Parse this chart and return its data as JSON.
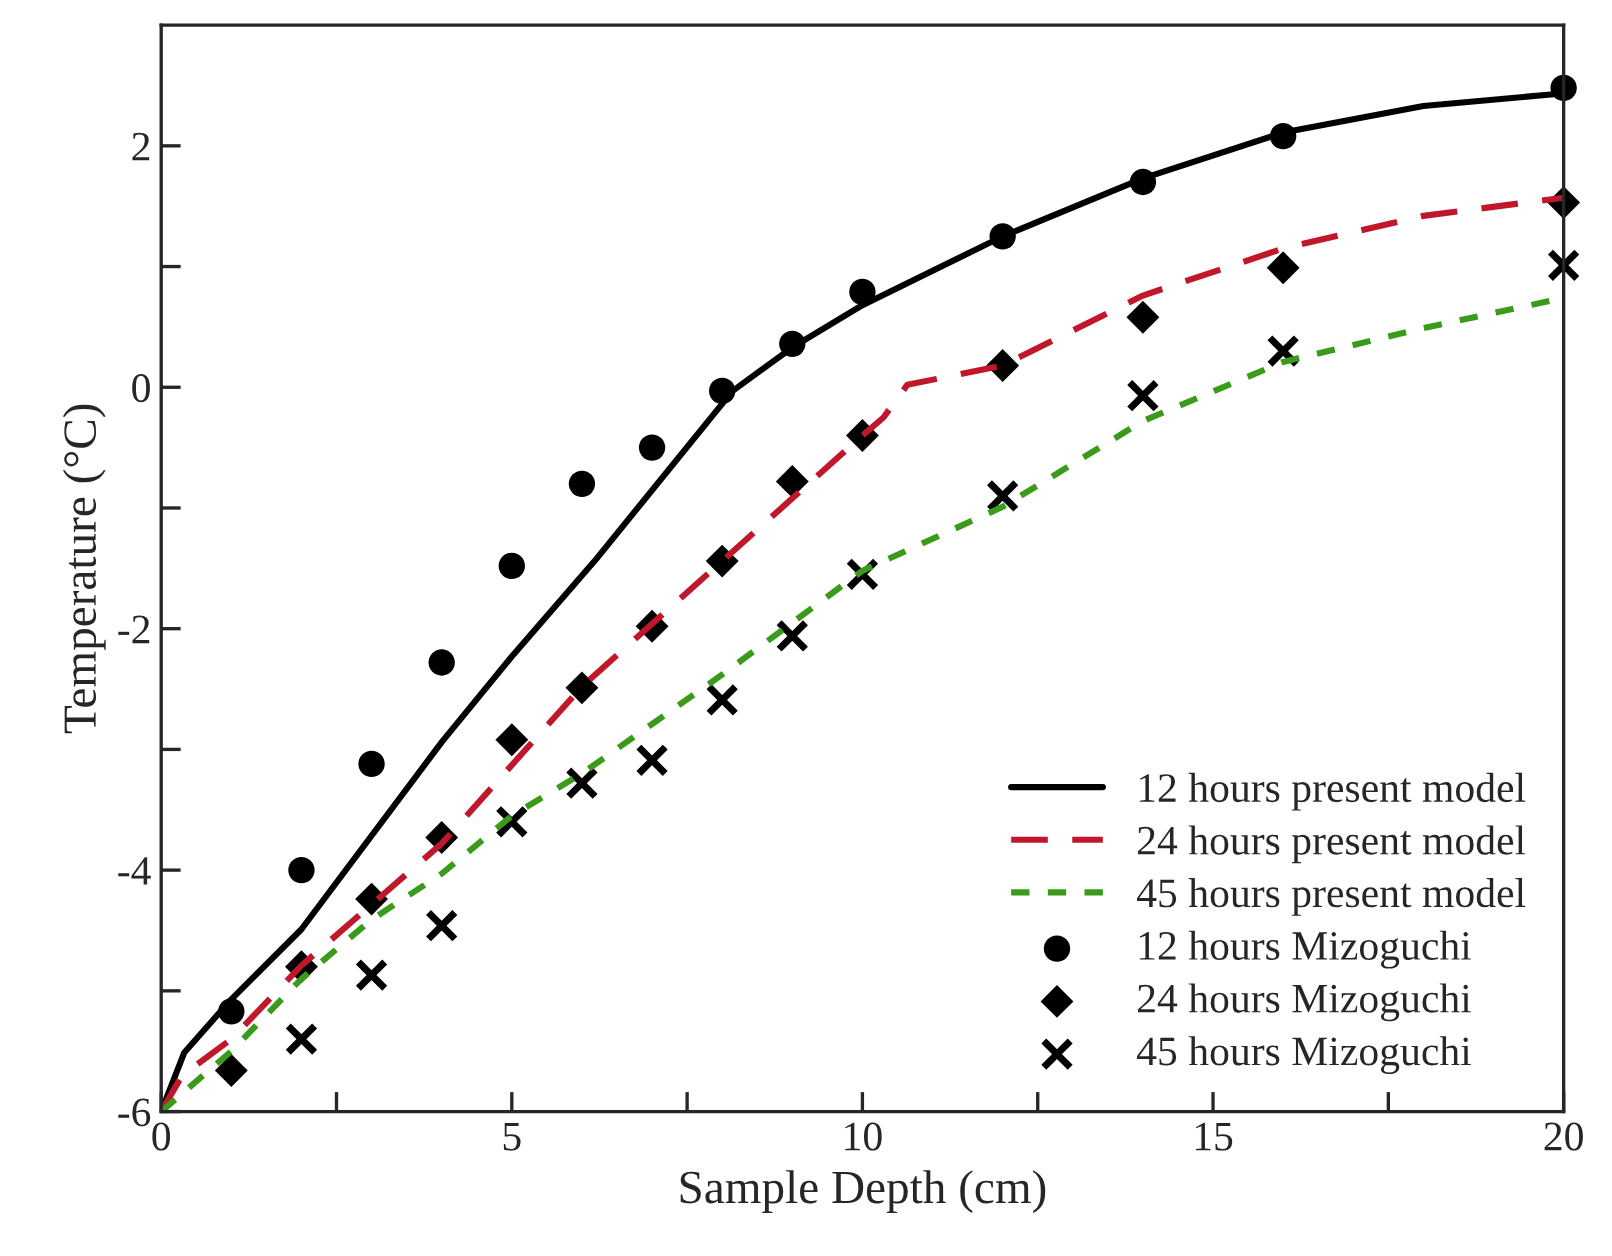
{
  "chart_data": {
    "type": "line",
    "xlabel": "Sample Depth (cm)",
    "ylabel": "Temperature (°C)",
    "xlim": [
      0,
      20
    ],
    "ylim": [
      -6,
      3
    ],
    "xticks": [
      0,
      {
        "value": 2.5,
        "label": null
      },
      5,
      {
        "value": 7.5,
        "label": null
      },
      10,
      {
        "value": 12.5,
        "label": null
      },
      15,
      {
        "value": 17.5,
        "label": null
      },
      20
    ],
    "yticks": [
      -6,
      {
        "value": -5,
        "label": null
      },
      -4,
      {
        "value": -3,
        "label": null
      },
      -2,
      {
        "value": -1,
        "label": null
      },
      0,
      {
        "value": 1,
        "label": null
      },
      2
    ],
    "grid": false,
    "legend": "bottom right",
    "series": [
      {
        "name": "12 hours present model",
        "color": "#000000",
        "line_style": "solid",
        "marker": "none",
        "x": [
          0,
          0.33,
          1,
          2,
          4,
          5,
          6.18,
          8.15,
          9,
          10,
          12,
          14,
          16,
          18,
          19.9
        ],
        "values": [
          -6,
          -5.51,
          -5.07,
          -4.49,
          -2.94,
          -2.23,
          -1.44,
          -0.03,
          0.33,
          0.68,
          1.25,
          1.73,
          2.11,
          2.33,
          2.43
        ]
      },
      {
        "name": "24 hours present model",
        "color": "#c0172b",
        "line_style": "dashed",
        "marker": "none",
        "x": [
          0,
          0.3,
          1,
          2,
          4,
          6,
          8,
          10,
          10.3,
          10.64,
          12,
          14,
          16,
          18,
          20
        ],
        "values": [
          -6,
          -5.7,
          -5.4,
          -4.79,
          -3.78,
          -2.48,
          -1.44,
          -0.4,
          -0.25,
          0.02,
          0.18,
          0.76,
          1.15,
          1.42,
          1.57
        ]
      },
      {
        "name": "45 hours present model",
        "color": "#3a9a1a",
        "line_style": "dotted",
        "marker": "none",
        "x": [
          0,
          1,
          2,
          3,
          4,
          5,
          6,
          8,
          10,
          12,
          14,
          16,
          18,
          20
        ],
        "values": [
          -6,
          -5.5,
          -4.9,
          -4.41,
          -4.03,
          -3.55,
          -3.2,
          -2.38,
          -1.52,
          -0.99,
          -0.28,
          0.21,
          0.49,
          0.74
        ]
      },
      {
        "name": "12 hours Mizoguchi",
        "type": "scatter",
        "color": "#000000",
        "marker": "circle",
        "x": [
          1,
          2,
          3,
          4,
          5,
          6,
          7,
          8,
          9,
          10,
          12,
          14,
          16,
          20
        ],
        "values": [
          -5.17,
          -4.0,
          -3.12,
          -2.28,
          -1.48,
          -0.8,
          -0.5,
          -0.03,
          0.36,
          0.79,
          1.25,
          1.7,
          2.08,
          2.48
        ]
      },
      {
        "name": "24 hours Mizoguchi",
        "type": "scatter",
        "color": "#000000",
        "marker": "diamond",
        "x": [
          1,
          2,
          3,
          4,
          5,
          6,
          7,
          8,
          9,
          10,
          12,
          14,
          16,
          20
        ],
        "values": [
          -5.66,
          -4.8,
          -4.24,
          -3.73,
          -2.92,
          -2.49,
          -1.98,
          -1.44,
          -0.78,
          -0.4,
          0.18,
          0.58,
          0.99,
          1.53
        ]
      },
      {
        "name": "45 hours Mizoguchi",
        "type": "scatter",
        "color": "#000000",
        "marker": "cross",
        "x": [
          2,
          3,
          4,
          5,
          6,
          7,
          8,
          9,
          10,
          12,
          14,
          16,
          20
        ],
        "values": [
          -5.4,
          -4.87,
          -4.46,
          -3.6,
          -3.28,
          -3.09,
          -2.59,
          -2.06,
          -1.55,
          -0.9,
          -0.07,
          0.3,
          1.01
        ]
      }
    ]
  }
}
